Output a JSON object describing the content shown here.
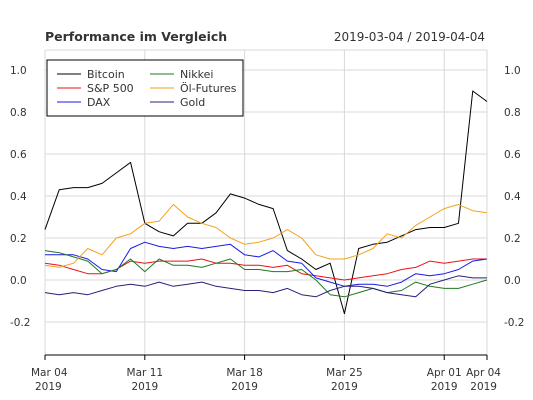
{
  "chart_data": {
    "type": "line",
    "title": "Performance im Vergleich",
    "subtitle": "2019-03-04 / 2019-04-04",
    "ylim": [
      -0.35,
      1.05
    ],
    "y_ticks": [
      {
        "value": 1.0,
        "label": "1.0"
      },
      {
        "value": 0.8,
        "label": "0.8"
      },
      {
        "value": 0.6,
        "label": "0.6"
      },
      {
        "value": 0.4,
        "label": "0.4"
      },
      {
        "value": 0.2,
        "label": "0.2"
      },
      {
        "value": 0.0,
        "label": "0.0"
      },
      {
        "value": -0.2,
        "label": "-0.2"
      }
    ],
    "x_ticks": [
      {
        "x": "2019-03-04",
        "line1": "Mar 04",
        "line2": "2019"
      },
      {
        "x": "2019-03-11",
        "line1": "Mar 11",
        "line2": "2019"
      },
      {
        "x": "2019-03-18",
        "line1": "Mar 18",
        "line2": "2019"
      },
      {
        "x": "2019-03-25",
        "line1": "Mar 25",
        "line2": "2019"
      },
      {
        "x": "2019-04-01",
        "line1": "Apr 01",
        "line2": "2019"
      },
      {
        "x": "2019-04-04",
        "line1": "Apr 04",
        "line2": "2019"
      }
    ],
    "x": [
      "2019-03-04",
      "2019-03-05",
      "2019-03-06",
      "2019-03-07",
      "2019-03-08",
      "2019-03-09",
      "2019-03-10",
      "2019-03-11",
      "2019-03-12",
      "2019-03-13",
      "2019-03-14",
      "2019-03-15",
      "2019-03-16",
      "2019-03-17",
      "2019-03-18",
      "2019-03-19",
      "2019-03-20",
      "2019-03-21",
      "2019-03-22",
      "2019-03-23",
      "2019-03-24",
      "2019-03-25",
      "2019-03-26",
      "2019-03-27",
      "2019-03-28",
      "2019-03-29",
      "2019-03-30",
      "2019-03-31",
      "2019-04-01",
      "2019-04-02",
      "2019-04-03",
      "2019-04-04"
    ],
    "legend_position": "top-left",
    "grid": true,
    "series": [
      {
        "name": "Bitcoin",
        "color": "#000000",
        "values": [
          0.24,
          0.43,
          0.44,
          0.44,
          0.46,
          0.51,
          0.56,
          0.27,
          0.23,
          0.21,
          0.27,
          0.27,
          0.32,
          0.41,
          0.39,
          0.36,
          0.34,
          0.14,
          0.1,
          0.05,
          0.08,
          -0.16,
          0.15,
          0.17,
          0.18,
          0.21,
          0.24,
          0.25,
          0.25,
          0.27,
          0.9,
          0.85
        ]
      },
      {
        "name": "S&P 500",
        "color": "#e8121a",
        "values": [
          0.08,
          0.07,
          0.05,
          0.03,
          0.03,
          0.05,
          0.09,
          0.08,
          0.09,
          0.09,
          0.09,
          0.1,
          0.08,
          0.08,
          0.07,
          0.07,
          0.06,
          0.07,
          0.03,
          0.02,
          0.01,
          0.0,
          0.01,
          0.02,
          0.03,
          0.05,
          0.06,
          0.09,
          0.08,
          0.09,
          0.1,
          0.1
        ]
      },
      {
        "name": "DAX",
        "color": "#1a1ae6",
        "values": [
          0.12,
          0.12,
          0.12,
          0.1,
          0.05,
          0.04,
          0.15,
          0.18,
          0.16,
          0.15,
          0.16,
          0.15,
          0.16,
          0.17,
          0.12,
          0.11,
          0.14,
          0.09,
          0.08,
          0.01,
          -0.01,
          -0.03,
          -0.02,
          -0.02,
          -0.03,
          -0.01,
          0.03,
          0.02,
          0.03,
          0.05,
          0.09,
          0.1
        ]
      },
      {
        "name": "Nikkei",
        "color": "#1e7a1e",
        "values": [
          0.14,
          0.13,
          0.11,
          0.09,
          0.03,
          0.05,
          0.1,
          0.04,
          0.1,
          0.07,
          0.07,
          0.06,
          0.08,
          0.1,
          0.05,
          0.05,
          0.04,
          0.04,
          0.05,
          0.0,
          -0.07,
          -0.08,
          -0.06,
          -0.04,
          -0.06,
          -0.05,
          -0.01,
          -0.03,
          -0.04,
          -0.04,
          -0.02,
          0.0
        ]
      },
      {
        "name": "Öl-Futures",
        "color": "#f4a21c",
        "values": [
          0.07,
          0.06,
          0.08,
          0.15,
          0.12,
          0.2,
          0.22,
          0.27,
          0.28,
          0.36,
          0.3,
          0.27,
          0.25,
          0.2,
          0.17,
          0.18,
          0.2,
          0.24,
          0.2,
          0.12,
          0.1,
          0.1,
          0.12,
          0.15,
          0.22,
          0.2,
          0.26,
          0.3,
          0.34,
          0.36,
          0.33,
          0.32
        ]
      },
      {
        "name": "Gold",
        "color": "#2a1f7a",
        "values": [
          -0.06,
          -0.07,
          -0.06,
          -0.07,
          -0.05,
          -0.03,
          -0.02,
          -0.03,
          -0.01,
          -0.03,
          -0.02,
          -0.01,
          -0.03,
          -0.04,
          -0.05,
          -0.05,
          -0.06,
          -0.04,
          -0.07,
          -0.08,
          -0.05,
          -0.03,
          -0.03,
          -0.04,
          -0.06,
          -0.07,
          -0.08,
          -0.02,
          0.0,
          0.02,
          0.01,
          0.01
        ]
      }
    ]
  }
}
